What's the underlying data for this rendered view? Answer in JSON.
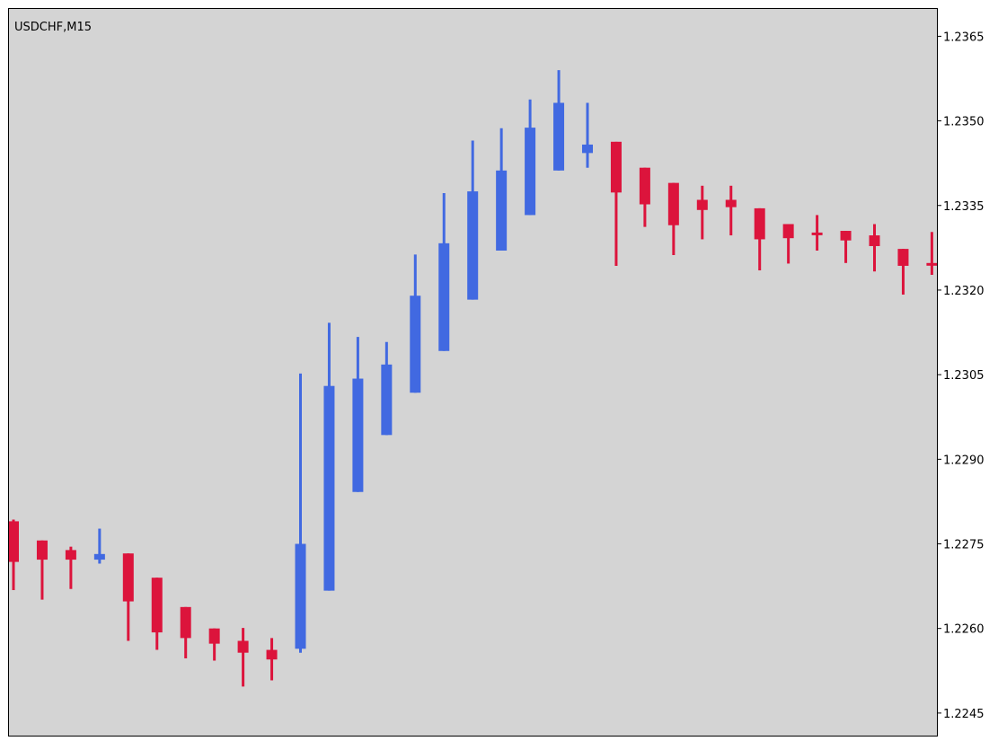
{
  "chart_data": {
    "type": "candlestick",
    "title": "USDCHF,M15",
    "symbol": "USDCHF",
    "timeframe": "M15",
    "ylim": [
      1.2241,
      1.237
    ],
    "y_ticks": [
      "1.2365",
      "1.2350",
      "1.2335",
      "1.2320",
      "1.2305",
      "1.2290",
      "1.2275",
      "1.2260",
      "1.2245"
    ],
    "grid": false,
    "colors": {
      "background": "#d4d4d4",
      "bull": "#4169e1",
      "bear": "#dc143c",
      "axis": "#000000",
      "text": "#000000"
    },
    "candles": [
      {
        "open": 1.2279,
        "high": 1.22793,
        "low": 1.22668,
        "close": 1.22718
      },
      {
        "open": 1.22756,
        "high": 1.22756,
        "low": 1.22651,
        "close": 1.22722
      },
      {
        "open": 1.22739,
        "high": 1.22745,
        "low": 1.2267,
        "close": 1.22722
      },
      {
        "open": 1.22722,
        "high": 1.22777,
        "low": 1.22715,
        "close": 1.22732
      },
      {
        "open": 1.22733,
        "high": 1.22733,
        "low": 1.22578,
        "close": 1.22648
      },
      {
        "open": 1.2269,
        "high": 1.2269,
        "low": 1.22562,
        "close": 1.22593
      },
      {
        "open": 1.22638,
        "high": 1.22638,
        "low": 1.22547,
        "close": 1.22583
      },
      {
        "open": 1.226,
        "high": 1.226,
        "low": 1.22543,
        "close": 1.22573
      },
      {
        "open": 1.22578,
        "high": 1.22601,
        "low": 1.22497,
        "close": 1.22557
      },
      {
        "open": 1.22562,
        "high": 1.22583,
        "low": 1.22508,
        "close": 1.22545
      },
      {
        "open": 1.22564,
        "high": 1.23052,
        "low": 1.22557,
        "close": 1.2275
      },
      {
        "open": 1.22667,
        "high": 1.23142,
        "low": 1.22667,
        "close": 1.2303
      },
      {
        "open": 1.22842,
        "high": 1.23117,
        "low": 1.22842,
        "close": 1.23043
      },
      {
        "open": 1.22943,
        "high": 1.23108,
        "low": 1.22943,
        "close": 1.23068
      },
      {
        "open": 1.23018,
        "high": 1.23263,
        "low": 1.23018,
        "close": 1.2319
      },
      {
        "open": 1.23092,
        "high": 1.23372,
        "low": 1.23092,
        "close": 1.23283
      },
      {
        "open": 1.23183,
        "high": 1.23465,
        "low": 1.23183,
        "close": 1.23375
      },
      {
        "open": 1.2327,
        "high": 1.23487,
        "low": 1.2327,
        "close": 1.23412
      },
      {
        "open": 1.23333,
        "high": 1.23538,
        "low": 1.23333,
        "close": 1.23488
      },
      {
        "open": 1.23412,
        "high": 1.2359,
        "low": 1.23412,
        "close": 1.23532
      },
      {
        "open": 1.23443,
        "high": 1.23532,
        "low": 1.23417,
        "close": 1.23458
      },
      {
        "open": 1.23463,
        "high": 1.23463,
        "low": 1.23243,
        "close": 1.23373
      },
      {
        "open": 1.23417,
        "high": 1.23417,
        "low": 1.23312,
        "close": 1.23352
      },
      {
        "open": 1.2339,
        "high": 1.2339,
        "low": 1.23262,
        "close": 1.23315
      },
      {
        "open": 1.2336,
        "high": 1.23385,
        "low": 1.2329,
        "close": 1.23342
      },
      {
        "open": 1.2336,
        "high": 1.23385,
        "low": 1.23297,
        "close": 1.23347
      },
      {
        "open": 1.23345,
        "high": 1.23345,
        "low": 1.23235,
        "close": 1.2329
      },
      {
        "open": 1.23317,
        "high": 1.23317,
        "low": 1.23247,
        "close": 1.23292
      },
      {
        "open": 1.23302,
        "high": 1.23333,
        "low": 1.2327,
        "close": 1.233
      },
      {
        "open": 1.23305,
        "high": 1.23305,
        "low": 1.23248,
        "close": 1.23288
      },
      {
        "open": 1.23297,
        "high": 1.23317,
        "low": 1.23233,
        "close": 1.23278
      },
      {
        "open": 1.23273,
        "high": 1.23273,
        "low": 1.23192,
        "close": 1.23243
      },
      {
        "open": 1.23248,
        "high": 1.23303,
        "low": 1.23227,
        "close": 1.23245
      }
    ]
  }
}
